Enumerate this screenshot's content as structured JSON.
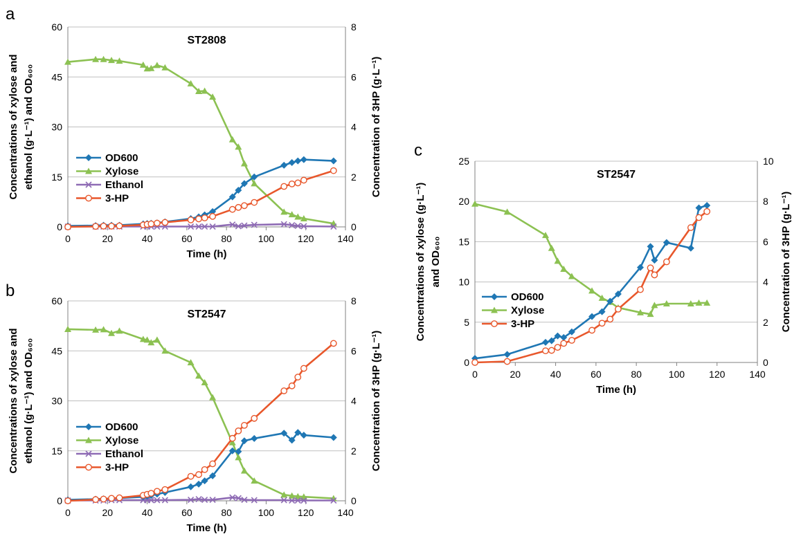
{
  "colors": {
    "od600": "#1f77b4",
    "xylose": "#8cc152",
    "ethanol": "#8e6bb4",
    "hp3": "#e8572b"
  },
  "chart_data": [
    {
      "id": "a",
      "panel_label": "a",
      "type": "line",
      "title": "ST2808",
      "xlabel": "Time (h)",
      "ylabel_left_lines": [
        "Concentrations of xylose and",
        "ethanol (g·L⁻¹) and OD₆₀₀"
      ],
      "ylabel_right": "Concentration of 3HP (g·L⁻¹)",
      "xlim": [
        0,
        140
      ],
      "xticks": [
        "0",
        "20",
        "40",
        "60",
        "80",
        "100",
        "120",
        "140"
      ],
      "ylim_left": [
        0,
        60
      ],
      "yticks_left": [
        "0",
        "15",
        "30",
        "45",
        "60"
      ],
      "ylim_right": [
        0,
        8
      ],
      "yticks_right": [
        "0",
        "2",
        "4",
        "6",
        "8"
      ],
      "legend": [
        "OD600",
        "Xylose",
        "Ethanol",
        "3-HP"
      ],
      "series": [
        {
          "name": "OD600",
          "axis": "left",
          "marker": "diamond",
          "x": [
            0,
            14,
            18,
            22,
            26,
            38,
            40,
            42,
            45,
            49,
            62,
            66,
            69,
            73,
            83,
            86,
            89,
            94,
            109,
            113,
            116,
            119,
            134
          ],
          "y": [
            0.3,
            0.4,
            0.5,
            0.5,
            0.5,
            0.9,
            1.0,
            1.1,
            1.2,
            1.5,
            2.5,
            3.0,
            3.6,
            4.6,
            9.0,
            11.0,
            13.0,
            15.0,
            18.5,
            19.3,
            19.8,
            20.2,
            19.8
          ]
        },
        {
          "name": "Xylose",
          "axis": "left",
          "marker": "triangle",
          "x": [
            0,
            14,
            18,
            22,
            26,
            38,
            40,
            42,
            45,
            49,
            62,
            66,
            69,
            73,
            83,
            86,
            89,
            94,
            109,
            113,
            116,
            119,
            134
          ],
          "y": [
            49.5,
            50.3,
            50.3,
            50.0,
            49.8,
            48.6,
            47.5,
            47.6,
            48.5,
            47.8,
            43.0,
            40.7,
            40.8,
            39.0,
            26.2,
            24.0,
            19.0,
            13.0,
            4.5,
            3.7,
            3.0,
            2.5,
            1.0
          ]
        },
        {
          "name": "Ethanol",
          "axis": "left",
          "marker": "x",
          "x": [
            0,
            14,
            18,
            22,
            26,
            38,
            40,
            42,
            45,
            49,
            62,
            66,
            69,
            73,
            83,
            86,
            89,
            94,
            109,
            113,
            116,
            119,
            134
          ],
          "y": [
            0.1,
            0.1,
            0.1,
            0.1,
            0.1,
            0.1,
            0.1,
            0.1,
            0.1,
            0.1,
            0.1,
            0.1,
            0.1,
            0.1,
            0.7,
            0.2,
            0.4,
            0.6,
            0.8,
            0.5,
            0.3,
            0.2,
            0.1
          ]
        },
        {
          "name": "3-HP",
          "axis": "right",
          "marker": "circle",
          "x": [
            0,
            14,
            18,
            22,
            26,
            38,
            40,
            42,
            45,
            49,
            62,
            66,
            69,
            73,
            83,
            86,
            89,
            94,
            109,
            113,
            116,
            119,
            134
          ],
          "y": [
            0.0,
            0.02,
            0.03,
            0.03,
            0.04,
            0.08,
            0.1,
            0.12,
            0.15,
            0.18,
            0.28,
            0.32,
            0.36,
            0.42,
            0.7,
            0.78,
            0.85,
            0.98,
            1.62,
            1.72,
            1.76,
            1.87,
            2.25
          ]
        }
      ]
    },
    {
      "id": "b",
      "panel_label": "b",
      "type": "line",
      "title": "ST2547",
      "xlabel": "Time (h)",
      "ylabel_left_lines": [
        "Concentrations of xylose and",
        "ethanol (g·L⁻¹) and OD₆₀₀"
      ],
      "ylabel_right": "Concentration of 3HP (g·L⁻¹)",
      "xlim": [
        0,
        140
      ],
      "xticks": [
        "0",
        "20",
        "40",
        "60",
        "80",
        "100",
        "120",
        "140"
      ],
      "ylim_left": [
        0,
        60
      ],
      "yticks_left": [
        "0",
        "15",
        "30",
        "45",
        "60"
      ],
      "ylim_right": [
        0,
        8
      ],
      "yticks_right": [
        "0",
        "2",
        "4",
        "6",
        "8"
      ],
      "legend": [
        "OD600",
        "Xylose",
        "Ethanol",
        "3-HP"
      ],
      "series": [
        {
          "name": "OD600",
          "axis": "left",
          "marker": "diamond",
          "x": [
            0,
            14,
            18,
            22,
            26,
            38,
            40,
            42,
            45,
            49,
            62,
            66,
            69,
            73,
            83,
            86,
            89,
            94,
            109,
            113,
            116,
            119,
            134
          ],
          "y": [
            0.3,
            0.5,
            0.6,
            0.7,
            0.8,
            1.2,
            1.4,
            1.6,
            2.0,
            2.5,
            4.2,
            5.0,
            6.0,
            7.5,
            15.0,
            14.8,
            18.0,
            18.7,
            20.3,
            18.2,
            20.5,
            19.7,
            19.0
          ]
        },
        {
          "name": "Xylose",
          "axis": "left",
          "marker": "triangle",
          "x": [
            0,
            14,
            18,
            22,
            26,
            38,
            40,
            42,
            45,
            49,
            62,
            66,
            69,
            73,
            83,
            86,
            89,
            94,
            109,
            113,
            116,
            119,
            134
          ],
          "y": [
            51.5,
            51.3,
            51.4,
            50.3,
            51.0,
            48.5,
            48.3,
            47.5,
            48.3,
            45.0,
            41.5,
            37.5,
            35.5,
            31.0,
            17.5,
            13.0,
            9.0,
            6.0,
            1.8,
            1.5,
            1.3,
            1.2,
            0.7
          ]
        },
        {
          "name": "Ethanol",
          "axis": "left",
          "marker": "x",
          "x": [
            0,
            14,
            18,
            22,
            26,
            38,
            40,
            42,
            45,
            49,
            62,
            66,
            69,
            73,
            83,
            86,
            89,
            94,
            109,
            113,
            116,
            119,
            134
          ],
          "y": [
            0.1,
            0.1,
            0.1,
            0.2,
            0.2,
            0.2,
            0.2,
            0.2,
            0.2,
            0.2,
            0.3,
            0.5,
            0.3,
            0.3,
            1.0,
            0.8,
            0.3,
            0.2,
            0.2,
            0.1,
            0.1,
            0.1,
            0.1
          ]
        },
        {
          "name": "3-HP",
          "axis": "right",
          "marker": "circle",
          "x": [
            0,
            14,
            18,
            22,
            26,
            38,
            40,
            42,
            45,
            49,
            62,
            66,
            69,
            73,
            83,
            86,
            89,
            94,
            109,
            113,
            116,
            119,
            134
          ],
          "y": [
            0.0,
            0.05,
            0.07,
            0.1,
            0.12,
            0.22,
            0.26,
            0.3,
            0.38,
            0.45,
            0.98,
            1.05,
            1.25,
            1.48,
            2.5,
            2.8,
            3.02,
            3.3,
            4.4,
            4.6,
            4.95,
            5.3,
            6.3
          ]
        }
      ]
    },
    {
      "id": "c",
      "panel_label": "c",
      "type": "line",
      "title": "ST2547",
      "xlabel": "Time (h)",
      "ylabel_left_lines": [
        "Concentrations of xylose (g·L⁻¹)",
        "and OD₆₀₀"
      ],
      "ylabel_right": "Concentration of 3HP (g·L⁻¹)",
      "xlim": [
        0,
        140
      ],
      "xticks": [
        "0",
        "20",
        "40",
        "60",
        "80",
        "100",
        "120",
        "140"
      ],
      "ylim_left": [
        0,
        25
      ],
      "yticks_left": [
        "0",
        "5",
        "10",
        "15",
        "20",
        "25"
      ],
      "ylim_right": [
        0,
        10
      ],
      "yticks_right": [
        "0",
        "2",
        "4",
        "6",
        "8",
        "10"
      ],
      "legend": [
        "OD600",
        "Xylose",
        "3-HP"
      ],
      "series": [
        {
          "name": "OD600",
          "axis": "left",
          "marker": "diamond",
          "x": [
            0,
            16,
            35,
            38,
            41,
            44,
            48,
            58,
            63,
            67,
            71,
            82,
            87,
            89,
            95,
            107,
            111,
            115
          ],
          "y": [
            0.5,
            1.0,
            2.5,
            2.7,
            3.3,
            3.1,
            3.8,
            5.7,
            6.3,
            7.6,
            8.5,
            11.8,
            14.4,
            12.7,
            14.9,
            14.2,
            19.2,
            19.5
          ]
        },
        {
          "name": "Xylose",
          "axis": "left",
          "marker": "triangle",
          "x": [
            0,
            16,
            35,
            38,
            41,
            44,
            48,
            58,
            63,
            67,
            71,
            82,
            87,
            89,
            95,
            107,
            111,
            115
          ],
          "y": [
            19.7,
            18.7,
            15.8,
            14.2,
            12.6,
            11.6,
            10.7,
            8.9,
            8.0,
            7.5,
            6.8,
            6.2,
            6.0,
            7.1,
            7.3,
            7.3,
            7.4,
            7.4
          ]
        },
        {
          "name": "3-HP",
          "axis": "right",
          "marker": "circle",
          "x": [
            0,
            16,
            35,
            38,
            41,
            44,
            48,
            58,
            63,
            67,
            71,
            82,
            87,
            89,
            95,
            107,
            111,
            115
          ],
          "y": [
            0.0,
            0.05,
            0.58,
            0.6,
            0.75,
            0.95,
            1.1,
            1.6,
            1.95,
            2.15,
            2.65,
            3.62,
            4.7,
            4.35,
            5.0,
            6.7,
            7.2,
            7.5
          ]
        }
      ]
    }
  ]
}
